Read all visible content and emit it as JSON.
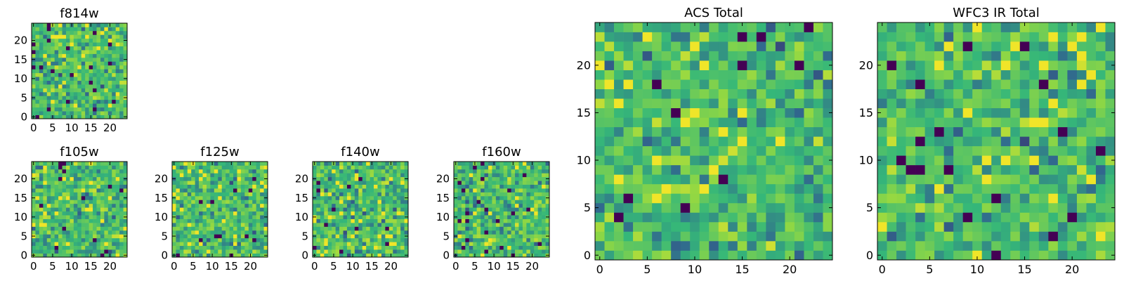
{
  "figure": {
    "colormap": [
      "#440154",
      "#31688e",
      "#35b779",
      "#8fd744",
      "#fde725"
    ]
  },
  "chart_data": [
    {
      "id": "f814w",
      "type": "heatmap",
      "title": "f814w",
      "grid_size": 25,
      "seed": 814,
      "x_ticks": [
        0,
        5,
        10,
        15,
        20
      ],
      "y_ticks": [
        0,
        5,
        10,
        15,
        20
      ]
    },
    {
      "id": "f105w",
      "type": "heatmap",
      "title": "f105w",
      "grid_size": 25,
      "seed": 105,
      "x_ticks": [
        0,
        5,
        10,
        15,
        20
      ],
      "y_ticks": [
        0,
        5,
        10,
        15,
        20
      ]
    },
    {
      "id": "f125w",
      "type": "heatmap",
      "title": "f125w",
      "grid_size": 25,
      "seed": 125,
      "x_ticks": [
        0,
        5,
        10,
        15,
        20
      ],
      "y_ticks": [
        0,
        5,
        10,
        15,
        20
      ]
    },
    {
      "id": "f140w",
      "type": "heatmap",
      "title": "f140w",
      "grid_size": 25,
      "seed": 140,
      "x_ticks": [
        0,
        5,
        10,
        15,
        20
      ],
      "y_ticks": [
        0,
        5,
        10,
        15,
        20
      ]
    },
    {
      "id": "f160w",
      "type": "heatmap",
      "title": "f160w",
      "grid_size": 25,
      "seed": 160,
      "x_ticks": [
        0,
        5,
        10,
        15,
        20
      ],
      "y_ticks": [
        0,
        5,
        10,
        15,
        20
      ]
    },
    {
      "id": "acs-total",
      "type": "heatmap",
      "title": "ACS Total",
      "grid_size": 25,
      "seed": 1,
      "x_ticks": [
        0,
        5,
        10,
        15,
        20
      ],
      "y_ticks": [
        0,
        5,
        10,
        15,
        20
      ]
    },
    {
      "id": "wfc3-ir-total",
      "type": "heatmap",
      "title": "WFC3 IR Total",
      "grid_size": 25,
      "seed": 2,
      "x_ticks": [
        0,
        5,
        10,
        15,
        20
      ],
      "y_ticks": [
        0,
        5,
        10,
        15,
        20
      ]
    }
  ]
}
